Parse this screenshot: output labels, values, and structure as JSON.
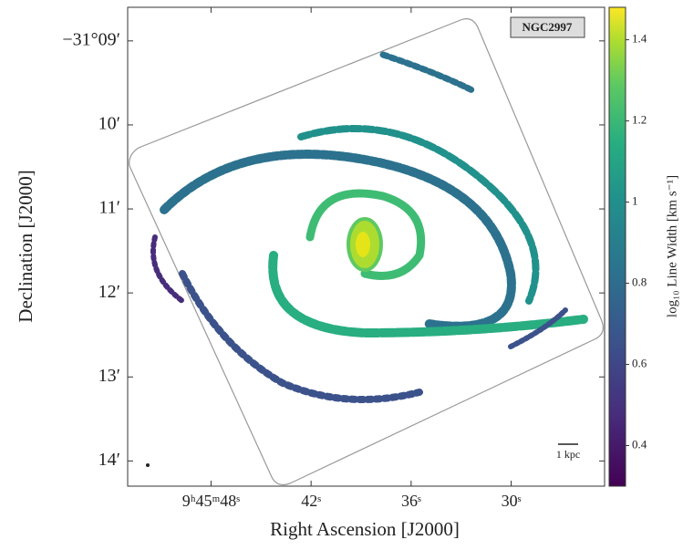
{
  "chart_data": {
    "type": "image",
    "title": "NGC2997",
    "x_label": "Right Ascension [J2000]",
    "y_label": "Declination [J2000]",
    "xlim": [
      53.0,
      24.4
    ],
    "xticks": [
      {
        "value": 48,
        "label": "9ʰ45ᵐ48ˢ"
      },
      {
        "value": 42,
        "label": "42ˢ"
      },
      {
        "value": 36,
        "label": "36ˢ"
      },
      {
        "value": 30,
        "label": "30ˢ"
      }
    ],
    "ylim": [
      8.6,
      14.3
    ],
    "yticks": [
      {
        "value": 9,
        "label": "−31°09′"
      },
      {
        "value": 10,
        "label": "10′"
      },
      {
        "value": 11,
        "label": "11′"
      },
      {
        "value": 12,
        "label": "12′"
      },
      {
        "value": 13,
        "label": "13′"
      },
      {
        "value": 14,
        "label": "14′"
      }
    ],
    "colorbar": {
      "label": "log₁₀ Line Width [km s⁻¹]",
      "lim": [
        0.3,
        1.48
      ],
      "ticks": [
        0.4,
        0.6,
        0.8,
        1.0,
        1.2,
        1.4
      ]
    },
    "scalebar_label": "1 kpc"
  }
}
